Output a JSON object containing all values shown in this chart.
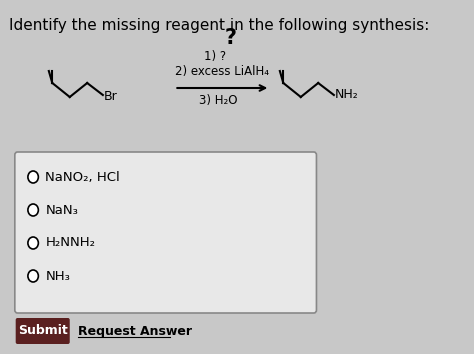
{
  "title": "Identify the missing reagent in the following synthesis:",
  "title_fontsize": 11,
  "background_color": "#c8c8c8",
  "box_background": "#e8e8e8",
  "reagents_line1": "1) ?",
  "reagents_line2": "2) excess LiAlH₄",
  "reagents_line3": "3) H₂O",
  "choices": [
    "NaNO₂, HCl",
    "NaN₃",
    "H₂NNH₂",
    "NH₃"
  ],
  "submit_label": "Submit",
  "request_label": "Request Answer",
  "submit_bg": "#5a2020",
  "submit_fg": "#ffffff",
  "arrow_color": "#000000",
  "text_color": "#000000"
}
